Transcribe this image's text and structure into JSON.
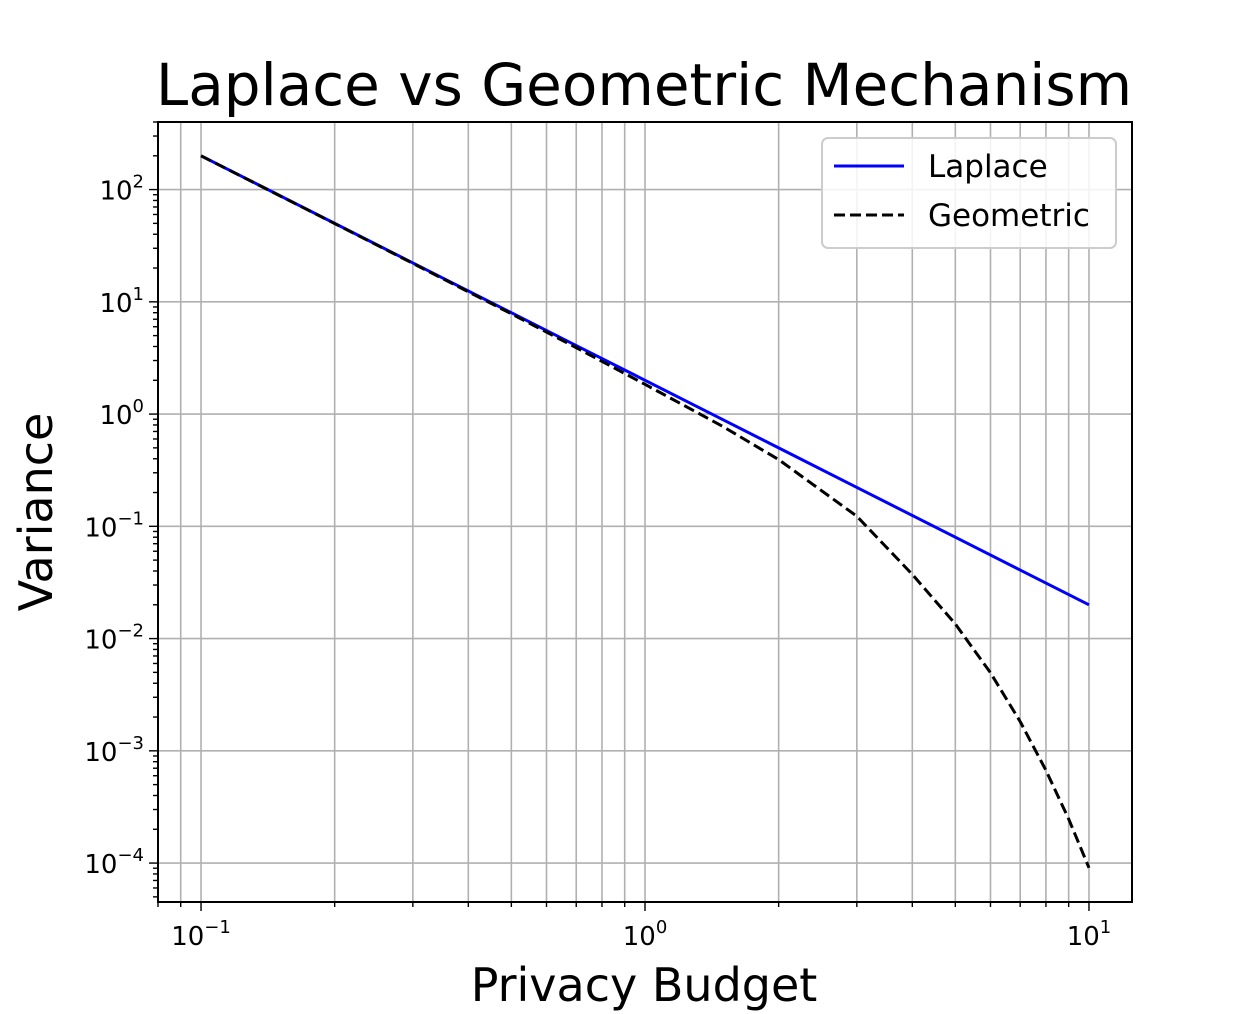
{
  "chart_data": {
    "type": "line",
    "title": "Laplace vs Geometric Mechanism",
    "xlabel": "Privacy Budget",
    "ylabel": "Variance",
    "xscale": "log",
    "yscale": "log",
    "xlim": [
      0.08,
      12.5
    ],
    "ylim": [
      4.5e-05,
      400
    ],
    "grid": true,
    "grid_minor_x": true,
    "legend_position": "top-right",
    "x_ticks": [
      {
        "base": "10",
        "exp": "−1",
        "value": 0.1
      },
      {
        "base": "10",
        "exp": "0",
        "value": 1
      },
      {
        "base": "10",
        "exp": "1",
        "value": 10
      }
    ],
    "y_ticks": [
      {
        "base": "10",
        "exp": "2",
        "value": 100
      },
      {
        "base": "10",
        "exp": "1",
        "value": 10
      },
      {
        "base": "10",
        "exp": "0",
        "value": 1
      },
      {
        "base": "10",
        "exp": "−1",
        "value": 0.1
      },
      {
        "base": "10",
        "exp": "−2",
        "value": 0.01
      },
      {
        "base": "10",
        "exp": "−3",
        "value": 0.001
      },
      {
        "base": "10",
        "exp": "−4",
        "value": 0.0001
      }
    ],
    "series": [
      {
        "name": "Laplace",
        "color": "#0000ff",
        "style": "solid",
        "x": [
          0.1,
          0.2,
          0.3,
          0.5,
          0.7,
          1,
          1.5,
          2,
          3,
          5,
          7,
          10
        ],
        "y": [
          200,
          50,
          22.2,
          8,
          4.08,
          2,
          0.889,
          0.5,
          0.222,
          0.08,
          0.0408,
          0.02
        ]
      },
      {
        "name": "Geometric",
        "color": "#000000",
        "style": "dashed",
        "x": [
          0.1,
          0.2,
          0.3,
          0.5,
          0.7,
          1,
          1.5,
          2,
          3,
          4,
          5,
          6,
          7,
          8,
          9,
          10
        ],
        "y": [
          199.8,
          49.8,
          22.0,
          7.82,
          3.91,
          1.84,
          0.772,
          0.393,
          0.123,
          0.0373,
          0.0135,
          0.00496,
          0.00182,
          0.00067,
          0.000247,
          9.08e-05
        ]
      }
    ]
  }
}
